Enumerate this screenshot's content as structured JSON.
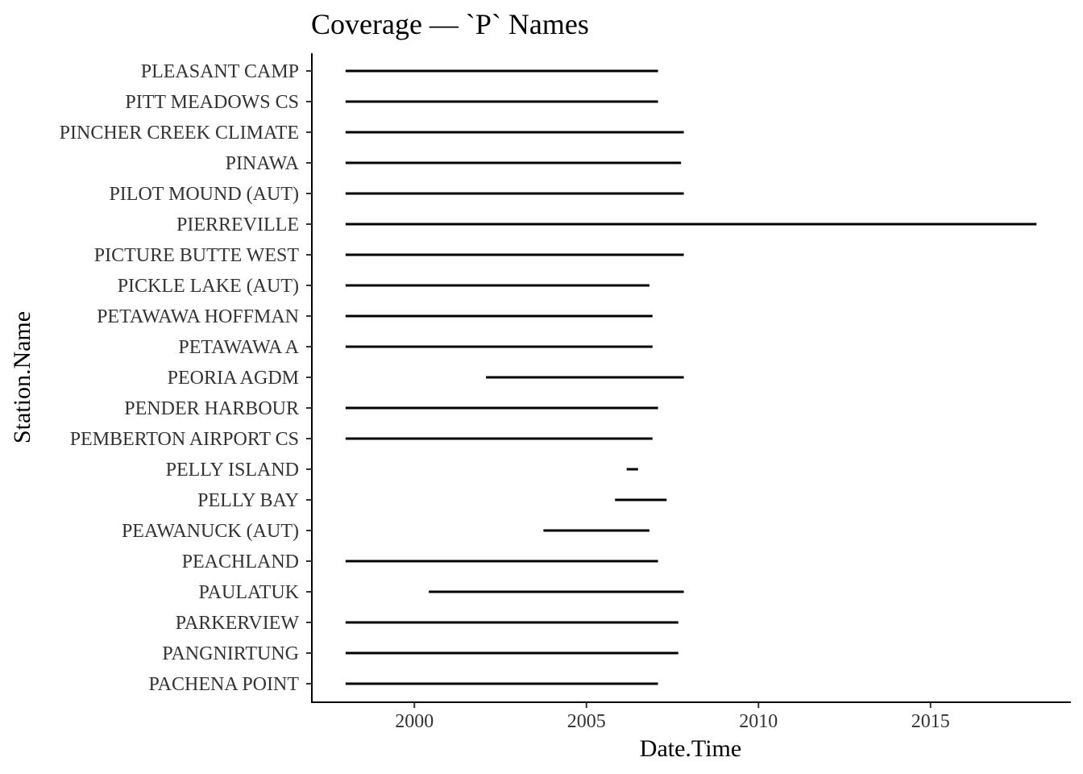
{
  "chart_data": {
    "type": "range",
    "title": "Coverage — `P` Names",
    "xlabel": "Date.Time",
    "ylabel": "Station.Name",
    "xlim": [
      1997.02,
      2019.08
    ],
    "x_ticks": [
      2000,
      2005,
      2010,
      2015
    ],
    "x_tick_labels": [
      "2000",
      "2005",
      "2010",
      "2015"
    ],
    "grid": false,
    "line_color": "#000000",
    "stations": [
      {
        "name": "PACHENA POINT",
        "start": 1998.0,
        "end": 2007.08
      },
      {
        "name": "PANGNIRTUNG",
        "start": 1998.0,
        "end": 2007.67
      },
      {
        "name": "PARKERVIEW",
        "start": 1998.0,
        "end": 2007.67
      },
      {
        "name": "PAULATUK",
        "start": 2000.42,
        "end": 2007.83
      },
      {
        "name": "PEACHLAND",
        "start": 1998.0,
        "end": 2007.08
      },
      {
        "name": "PEAWANUCK (AUT)",
        "start": 2003.75,
        "end": 2006.83
      },
      {
        "name": "PELLY BAY",
        "start": 2005.83,
        "end": 2007.33
      },
      {
        "name": "PELLY ISLAND",
        "start": 2006.17,
        "end": 2006.5
      },
      {
        "name": "PEMBERTON AIRPORT CS",
        "start": 1998.0,
        "end": 2006.92
      },
      {
        "name": "PENDER HARBOUR",
        "start": 1998.0,
        "end": 2007.08
      },
      {
        "name": "PEORIA AGDM",
        "start": 2002.08,
        "end": 2007.83
      },
      {
        "name": "PETAWAWA A",
        "start": 1998.0,
        "end": 2006.92
      },
      {
        "name": "PETAWAWA HOFFMAN",
        "start": 1998.0,
        "end": 2006.92
      },
      {
        "name": "PICKLE LAKE (AUT)",
        "start": 1998.0,
        "end": 2006.83
      },
      {
        "name": "PICTURE BUTTE WEST",
        "start": 1998.0,
        "end": 2007.83
      },
      {
        "name": "PIERREVILLE",
        "start": 1998.0,
        "end": 2018.08
      },
      {
        "name": "PILOT MOUND (AUT)",
        "start": 1998.0,
        "end": 2007.83
      },
      {
        "name": "PINAWA",
        "start": 1998.0,
        "end": 2007.75
      },
      {
        "name": "PINCHER CREEK CLIMATE",
        "start": 1998.0,
        "end": 2007.83
      },
      {
        "name": "PITT MEADOWS CS",
        "start": 1998.0,
        "end": 2007.08
      },
      {
        "name": "PLEASANT CAMP",
        "start": 1998.0,
        "end": 2007.08
      }
    ]
  }
}
